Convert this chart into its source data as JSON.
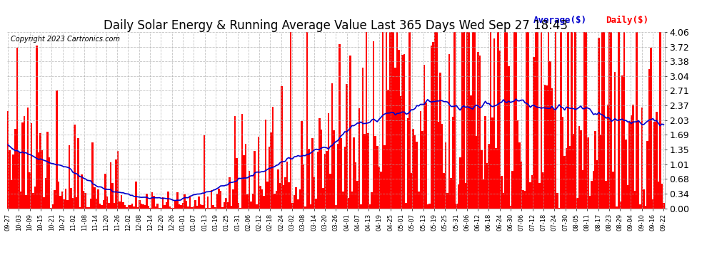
{
  "title": "Daily Solar Energy & Running Average Value Last 365 Days Wed Sep 27 18:43",
  "copyright": "Copyright 2023 Cartronics.com",
  "legend_average": "Average($)",
  "legend_daily": "Daily($)",
  "ylim": [
    0.0,
    4.06
  ],
  "yticks": [
    0.0,
    0.34,
    0.68,
    1.01,
    1.35,
    1.69,
    2.03,
    2.37,
    2.71,
    3.04,
    3.38,
    3.72,
    4.06
  ],
  "bar_color": "#ff0000",
  "average_color": "#0000cc",
  "background_color": "#ffffff",
  "grid_color": "#aaaaaa",
  "title_fontsize": 12,
  "num_bars": 365,
  "xtick_labels": [
    "09-27",
    "10-03",
    "10-09",
    "10-15",
    "10-21",
    "10-27",
    "11-02",
    "11-08",
    "11-14",
    "11-20",
    "11-26",
    "12-02",
    "12-08",
    "12-14",
    "12-20",
    "12-26",
    "01-01",
    "01-07",
    "01-13",
    "01-19",
    "01-25",
    "01-31",
    "02-06",
    "02-12",
    "02-18",
    "02-24",
    "03-02",
    "03-08",
    "03-14",
    "03-20",
    "03-26",
    "04-01",
    "04-07",
    "04-13",
    "04-19",
    "04-25",
    "05-01",
    "05-07",
    "05-13",
    "05-19",
    "05-25",
    "05-31",
    "06-06",
    "06-12",
    "06-18",
    "06-24",
    "06-30",
    "07-06",
    "07-12",
    "07-18",
    "07-24",
    "07-30",
    "08-05",
    "08-11",
    "08-17",
    "08-23",
    "08-29",
    "09-04",
    "09-10",
    "09-16",
    "09-22"
  ]
}
